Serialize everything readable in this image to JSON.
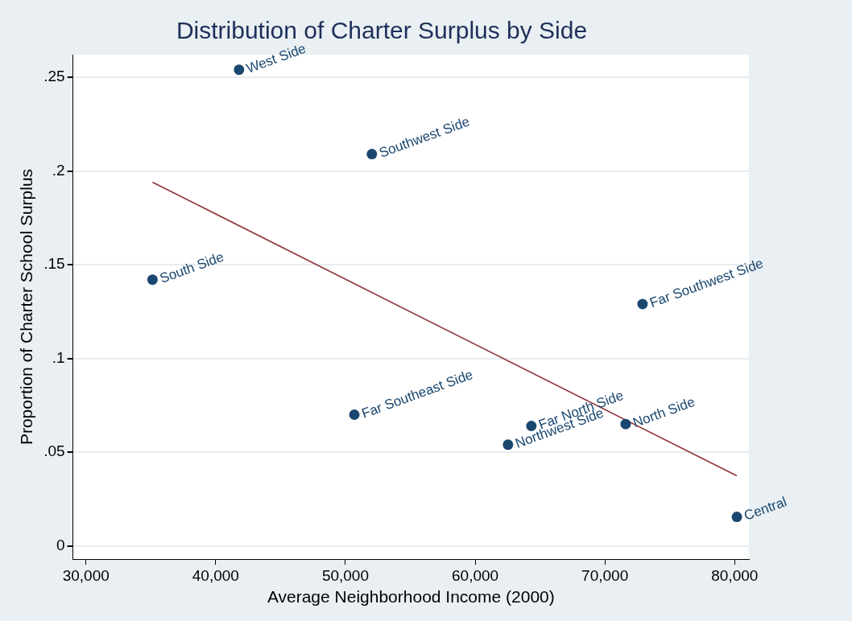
{
  "chart_data": {
    "type": "scatter",
    "title": "Distribution of Charter Surplus by Side",
    "xlabel": "Average Neighborhood Income (2000)",
    "ylabel": "Proportion of Charter School Surplus",
    "xlim": [
      29000,
      81100
    ],
    "ylim": [
      -0.007,
      0.262
    ],
    "xticks": [
      {
        "value": 30000,
        "label": "30,000"
      },
      {
        "value": 40000,
        "label": "40,000"
      },
      {
        "value": 50000,
        "label": "50,000"
      },
      {
        "value": 60000,
        "label": "60,000"
      },
      {
        "value": 70000,
        "label": "70,000"
      },
      {
        "value": 80000,
        "label": "80,000"
      }
    ],
    "yticks": [
      {
        "value": 0,
        "label": "0"
      },
      {
        "value": 0.05,
        "label": ".05"
      },
      {
        "value": 0.1,
        "label": ".1"
      },
      {
        "value": 0.15,
        "label": ".15"
      },
      {
        "value": 0.2,
        "label": ".2"
      },
      {
        "value": 0.25,
        "label": ".25"
      }
    ],
    "grid": "y",
    "legend": false,
    "marker": "circle",
    "series": [
      {
        "type": "scatter",
        "color": "#1a476f",
        "x": [
          41800,
          52040,
          35130,
          72900,
          50690,
          64330,
          62530,
          71600,
          80170
        ],
        "values": [
          0.254,
          0.209,
          0.142,
          0.129,
          0.07,
          0.064,
          0.054,
          0.065,
          0.0155
        ]
      },
      {
        "type": "line",
        "color": "#90353b",
        "x": [
          35130,
          80170
        ],
        "values": [
          0.194,
          0.0374
        ],
        "line_style": "solid",
        "marker": "none"
      }
    ],
    "annotations": [
      {
        "text": "West Side",
        "x": 41800,
        "y": 0.254
      },
      {
        "text": "Southwest Side",
        "x": 52040,
        "y": 0.209
      },
      {
        "text": "South Side",
        "x": 35130,
        "y": 0.142
      },
      {
        "text": "Far Southwest Side",
        "x": 72900,
        "y": 0.129
      },
      {
        "text": "Far Southeast Side",
        "x": 50690,
        "y": 0.07
      },
      {
        "text": "Far North Side",
        "x": 64330,
        "y": 0.064
      },
      {
        "text": "Northwest Side",
        "x": 62530,
        "y": 0.054
      },
      {
        "text": "North Side",
        "x": 71600,
        "y": 0.065
      },
      {
        "text": "Central",
        "x": 80170,
        "y": 0.0155
      }
    ]
  }
}
